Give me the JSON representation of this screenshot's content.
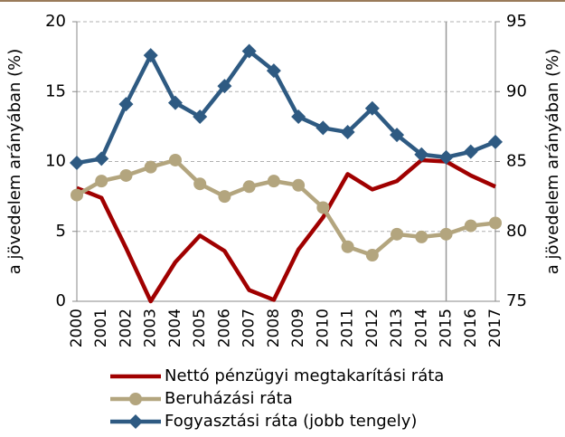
{
  "chart_data": {
    "type": "line",
    "categories": [
      "2000",
      "2001",
      "2002",
      "2003",
      "2004",
      "2005",
      "2006",
      "2007",
      "2008",
      "2009",
      "2010",
      "2011",
      "2012",
      "2013",
      "2014",
      "2015",
      "2016",
      "2017"
    ],
    "series": [
      {
        "name": "Nettó pénzügyi megtakarítási ráta",
        "color": "#a00000",
        "marker": "none",
        "axis": "y",
        "values": [
          8.1,
          7.4,
          3.8,
          0.0,
          2.8,
          4.7,
          3.6,
          0.8,
          0.1,
          3.7,
          6.0,
          9.1,
          8.0,
          8.6,
          10.1,
          10.0,
          9.0,
          8.2
        ]
      },
      {
        "name": "Beruházási ráta",
        "color": "#b3a57e",
        "marker": "circle",
        "axis": "y",
        "values": [
          7.6,
          8.6,
          9.0,
          9.6,
          10.1,
          8.4,
          7.5,
          8.2,
          8.6,
          8.3,
          6.7,
          3.9,
          3.3,
          4.8,
          4.6,
          4.8,
          5.4,
          5.6
        ]
      },
      {
        "name": "Fogyasztási ráta (jobb tengely)",
        "color": "#2e5a82",
        "marker": "diamond",
        "axis": "y2",
        "values": [
          84.9,
          85.2,
          89.1,
          92.6,
          89.2,
          88.2,
          90.4,
          92.9,
          91.5,
          88.2,
          87.4,
          87.1,
          88.8,
          86.9,
          85.5,
          85.3,
          85.7,
          86.4
        ]
      }
    ],
    "ylabel": "a jövedelem arányában (%)",
    "y2label": "a jövedelem arányában (%)",
    "ylim": [
      0,
      20
    ],
    "yticks": [
      0,
      5,
      10,
      15,
      20
    ],
    "y2lim": [
      75,
      95
    ],
    "y2ticks": [
      75,
      80,
      85,
      90,
      95
    ],
    "grid": true,
    "vertical_line_at": "2015",
    "legend": "bottom"
  }
}
